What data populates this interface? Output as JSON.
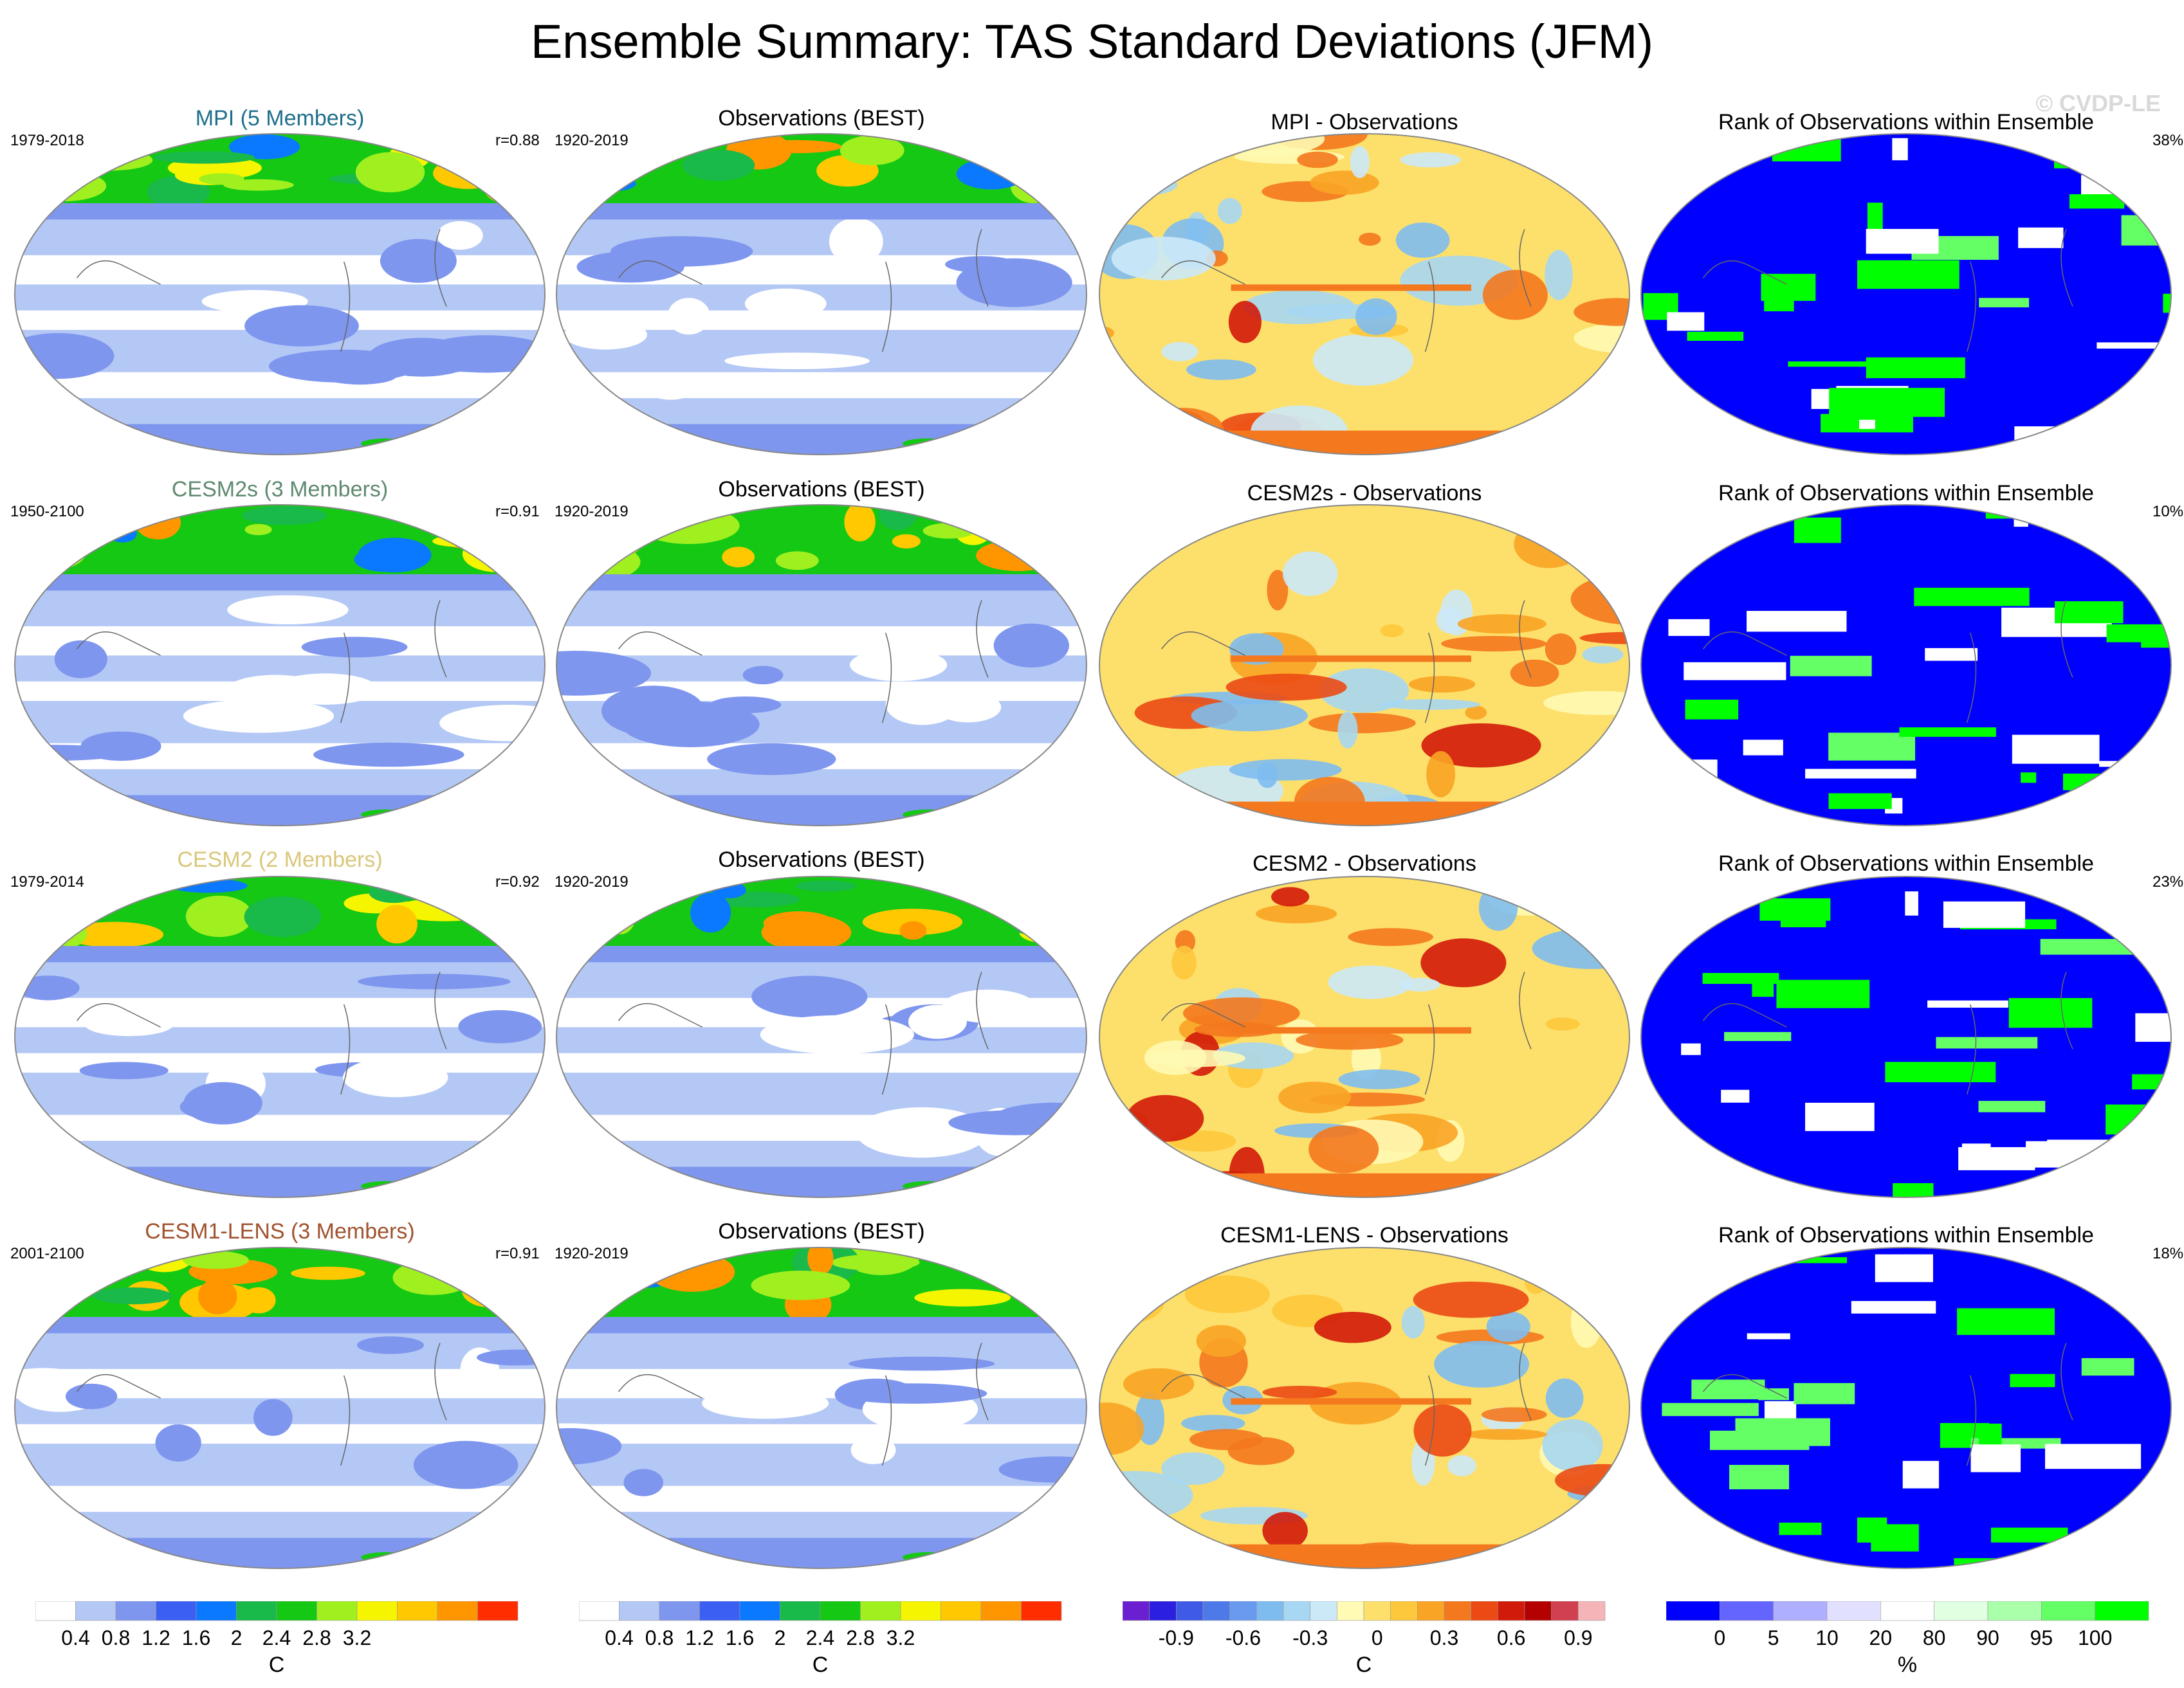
{
  "title": "Ensemble Summary: TAS Standard Deviations (JFM)",
  "watermark": "© CVDP-LE",
  "rows": [
    {
      "model_label": "MPI (5 Members)",
      "model_color": "#1f6f8b",
      "model_years": "1979-2018",
      "pattern_corr": "r=0.88",
      "obs_label": "Observations (BEST)",
      "obs_years": "1920-2019",
      "diff_label": "MPI - Observations",
      "rank_label": "Rank of Observations within Ensemble",
      "rank_pct": "38%"
    },
    {
      "model_label": "CESM2s (3 Members)",
      "model_color": "#5f8a6f",
      "model_years": "1950-2100",
      "pattern_corr": "r=0.91",
      "obs_label": "Observations (BEST)",
      "obs_years": "1920-2019",
      "diff_label": "CESM2s - Observations",
      "rank_label": "Rank of Observations within Ensemble",
      "rank_pct": "10%"
    },
    {
      "model_label": "CESM2 (2 Members)",
      "model_color": "#d9c77a",
      "model_years": "1979-2014",
      "pattern_corr": "r=0.92",
      "obs_label": "Observations (BEST)",
      "obs_years": "1920-2019",
      "diff_label": "CESM2 - Observations",
      "rank_label": "Rank of Observations within Ensemble",
      "rank_pct": "23%"
    },
    {
      "model_label": "CESM1-LENS (3 Members)",
      "model_color": "#a0522d",
      "model_years": "2001-2100",
      "pattern_corr": "r=0.91",
      "obs_label": "Observations (BEST)",
      "obs_years": "1920-2019",
      "diff_label": "CESM1-LENS - Observations",
      "rank_label": "Rank of Observations within Ensemble",
      "rank_pct": "18%"
    }
  ],
  "chart_data": [
    {
      "type": "colorbar",
      "unit": "C",
      "colors": [
        "#ffffff",
        "#b4c8f5",
        "#7e96ee",
        "#3b5ff2",
        "#0a78ff",
        "#19b94a",
        "#14c814",
        "#a0f020",
        "#f5f500",
        "#ffc800",
        "#ff9600",
        "#ff2d00"
      ],
      "tick_labels": [
        "0.4",
        "0.8",
        "1.2",
        "1.6",
        "2",
        "2.4",
        "2.8",
        "3.2"
      ]
    },
    {
      "type": "colorbar",
      "unit": "C",
      "colors": [
        "#ffffff",
        "#b4c8f5",
        "#7e96ee",
        "#3b5ff2",
        "#0a78ff",
        "#19b94a",
        "#14c814",
        "#a0f020",
        "#f5f500",
        "#ffc800",
        "#ff9600",
        "#ff2d00"
      ],
      "tick_labels": [
        "0.4",
        "0.8",
        "1.2",
        "1.6",
        "2",
        "2.4",
        "2.8",
        "3.2"
      ]
    },
    {
      "type": "colorbar",
      "unit": "C",
      "colors": [
        "#6a1fd1",
        "#2b1fe0",
        "#3f5ae6",
        "#4d7ae8",
        "#6a9af0",
        "#7ebcf0",
        "#a7d7f2",
        "#cce9f8",
        "#fffab4",
        "#fde06b",
        "#fdc83c",
        "#f9a425",
        "#f4781e",
        "#eb4a14",
        "#d21a0a",
        "#b40000",
        "#d04050",
        "#f4b4b8"
      ],
      "tick_labels": [
        "-0.9",
        "-0.6",
        "-0.3",
        "0",
        "0.3",
        "0.6",
        "0.9"
      ]
    },
    {
      "type": "colorbar",
      "unit": "%",
      "colors": [
        "#0000ff",
        "#6464ff",
        "#afafff",
        "#e1e1ff",
        "#ffffff",
        "#e1ffe1",
        "#aaffaa",
        "#64ff64",
        "#00ff00"
      ],
      "tick_labels": [
        "0",
        "5",
        "10",
        "20",
        "80",
        "90",
        "95",
        "100"
      ]
    }
  ]
}
